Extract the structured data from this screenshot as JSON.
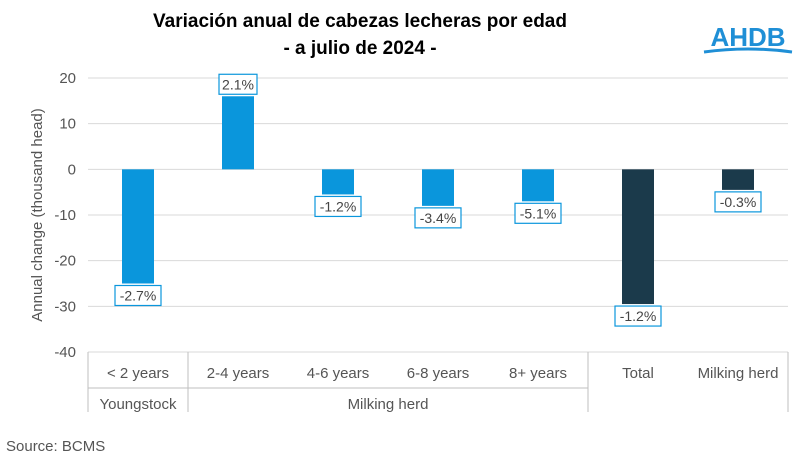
{
  "header": {
    "title_line1": "Variación anual de cabezas lecheras por edad",
    "title_line2": "- a julio de 2024 -"
  },
  "logo": {
    "text": "AHDB",
    "color": "#1f8fd6"
  },
  "source": "Source: BCMS",
  "chart_data": {
    "type": "bar",
    "title": "Variación anual de cabezas lecheras por edad - a julio de 2024 -",
    "xlabel": "",
    "ylabel": "Annual change (thousand head)",
    "ylim": [
      -40,
      20
    ],
    "yticks": [
      20,
      10,
      0,
      -10,
      -20,
      -30,
      -40
    ],
    "grid": true,
    "categories": [
      "< 2 years",
      "2-4 years",
      "4-6 years",
      "6-8 years",
      "8+ years",
      "Total",
      "Milking herd"
    ],
    "values": [
      -25,
      16,
      -5.5,
      -8,
      -7,
      -29.5,
      -4.5
    ],
    "data_labels": [
      "-2.7%",
      "2.1%",
      "-1.2%",
      "-3.4%",
      "-5.1%",
      "-1.2%",
      "-0.3%"
    ],
    "bar_colors": [
      "#0a96dc",
      "#0a96dc",
      "#0a96dc",
      "#0a96dc",
      "#0a96dc",
      "#1b3a4b",
      "#1b3a4b"
    ],
    "groups": [
      {
        "label": "Youngstock",
        "from": 0,
        "to": 0
      },
      {
        "label": "Milking herd",
        "from": 1,
        "to": 4
      },
      {
        "label": "",
        "from": 5,
        "to": 6
      }
    ]
  }
}
